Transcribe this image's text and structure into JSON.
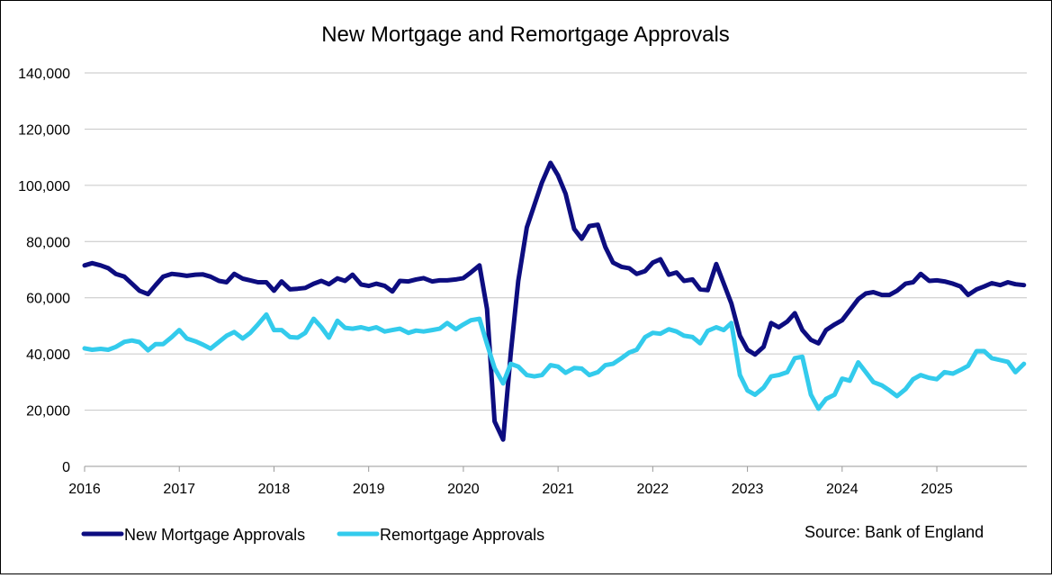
{
  "chart_data": {
    "type": "line",
    "title": "New Mortgage and Remortgage Approvals",
    "xlabel": "",
    "ylabel": "",
    "ylim": [
      0,
      140000
    ],
    "y_ticks": [
      0,
      20000,
      40000,
      60000,
      80000,
      100000,
      120000,
      140000
    ],
    "y_tick_labels": [
      "0",
      "20,000",
      "40,000",
      "60,000",
      "80,000",
      "100,000",
      "120,000",
      "140,000"
    ],
    "x_start_year": 2016,
    "x_end_year": 2025.95,
    "x_tick_labels": [
      "2016",
      "2017",
      "2018",
      "2019",
      "2020",
      "2021",
      "2022",
      "2023",
      "2024",
      "2025"
    ],
    "grid": true,
    "legend": "bottom-left",
    "source": "Source: Bank of England",
    "series": [
      {
        "name": "New Mortgage Approvals",
        "color": "#0d0d80",
        "values": [
          [
            2016.0,
            71500
          ],
          [
            2016.08,
            72300
          ],
          [
            2016.17,
            71500
          ],
          [
            2016.25,
            70500
          ],
          [
            2016.33,
            68500
          ],
          [
            2016.42,
            67500
          ],
          [
            2016.5,
            65000
          ],
          [
            2016.58,
            62500
          ],
          [
            2016.67,
            61300
          ],
          [
            2016.75,
            64500
          ],
          [
            2016.83,
            67500
          ],
          [
            2016.92,
            68500
          ],
          [
            2017.0,
            68200
          ],
          [
            2017.08,
            67800
          ],
          [
            2017.17,
            68200
          ],
          [
            2017.25,
            68300
          ],
          [
            2017.33,
            67500
          ],
          [
            2017.42,
            66000
          ],
          [
            2017.5,
            65500
          ],
          [
            2017.58,
            68500
          ],
          [
            2017.67,
            66800
          ],
          [
            2017.75,
            66200
          ],
          [
            2017.83,
            65500
          ],
          [
            2017.92,
            65500
          ],
          [
            2018.0,
            62500
          ],
          [
            2018.08,
            65800
          ],
          [
            2018.17,
            63000
          ],
          [
            2018.25,
            63200
          ],
          [
            2018.33,
            63500
          ],
          [
            2018.42,
            65000
          ],
          [
            2018.5,
            66000
          ],
          [
            2018.58,
            64800
          ],
          [
            2018.67,
            66900
          ],
          [
            2018.75,
            66000
          ],
          [
            2018.83,
            68200
          ],
          [
            2018.92,
            64700
          ],
          [
            2019.0,
            64200
          ],
          [
            2019.08,
            65000
          ],
          [
            2019.17,
            64200
          ],
          [
            2019.25,
            62200
          ],
          [
            2019.33,
            66000
          ],
          [
            2019.42,
            65800
          ],
          [
            2019.5,
            66500
          ],
          [
            2019.58,
            67000
          ],
          [
            2019.67,
            65800
          ],
          [
            2019.75,
            66200
          ],
          [
            2019.83,
            66200
          ],
          [
            2019.92,
            66500
          ],
          [
            2020.0,
            67000
          ],
          [
            2020.08,
            69000
          ],
          [
            2020.17,
            71500
          ],
          [
            2020.25,
            56000
          ],
          [
            2020.33,
            16000
          ],
          [
            2020.42,
            9500
          ],
          [
            2020.5,
            40000
          ],
          [
            2020.58,
            66000
          ],
          [
            2020.67,
            85000
          ],
          [
            2020.75,
            93000
          ],
          [
            2020.83,
            101000
          ],
          [
            2020.92,
            108000
          ],
          [
            2021.0,
            103500
          ],
          [
            2021.08,
            97000
          ],
          [
            2021.17,
            84500
          ],
          [
            2021.25,
            81000
          ],
          [
            2021.33,
            85500
          ],
          [
            2021.42,
            86000
          ],
          [
            2021.5,
            78000
          ],
          [
            2021.58,
            72500
          ],
          [
            2021.67,
            71000
          ],
          [
            2021.75,
            70500
          ],
          [
            2021.83,
            68500
          ],
          [
            2021.92,
            69500
          ],
          [
            2022.0,
            72500
          ],
          [
            2022.08,
            73700
          ],
          [
            2022.17,
            68200
          ],
          [
            2022.25,
            69000
          ],
          [
            2022.33,
            66000
          ],
          [
            2022.42,
            66500
          ],
          [
            2022.5,
            63000
          ],
          [
            2022.58,
            62700
          ],
          [
            2022.67,
            72000
          ],
          [
            2022.75,
            65000
          ],
          [
            2022.83,
            58000
          ],
          [
            2022.92,
            46500
          ],
          [
            2023.0,
            41500
          ],
          [
            2023.08,
            39800
          ],
          [
            2023.17,
            42500
          ],
          [
            2023.25,
            51000
          ],
          [
            2023.33,
            49500
          ],
          [
            2023.42,
            51500
          ],
          [
            2023.5,
            54500
          ],
          [
            2023.58,
            48500
          ],
          [
            2023.67,
            45000
          ],
          [
            2023.75,
            43800
          ],
          [
            2023.83,
            48500
          ],
          [
            2023.92,
            50500
          ],
          [
            2024.0,
            52000
          ],
          [
            2024.08,
            55500
          ],
          [
            2024.17,
            59500
          ],
          [
            2024.25,
            61500
          ],
          [
            2024.33,
            62000
          ],
          [
            2024.42,
            61000
          ],
          [
            2024.5,
            61000
          ],
          [
            2024.58,
            62500
          ],
          [
            2024.67,
            65000
          ],
          [
            2024.75,
            65500
          ],
          [
            2024.83,
            68500
          ],
          [
            2024.92,
            66000
          ],
          [
            2025.0,
            66200
          ],
          [
            2025.08,
            65800
          ],
          [
            2025.17,
            65000
          ],
          [
            2025.25,
            64000
          ],
          [
            2025.33,
            61000
          ],
          [
            2025.42,
            63000
          ],
          [
            2025.5,
            64000
          ],
          [
            2025.58,
            65200
          ],
          [
            2025.67,
            64500
          ],
          [
            2025.75,
            65500
          ],
          [
            2025.83,
            64800
          ],
          [
            2025.92,
            64500
          ]
        ]
      },
      {
        "name": "Remortgage Approvals",
        "color": "#33cbec",
        "values": [
          [
            2016.0,
            42000
          ],
          [
            2016.08,
            41500
          ],
          [
            2016.17,
            41800
          ],
          [
            2016.25,
            41500
          ],
          [
            2016.33,
            42500
          ],
          [
            2016.42,
            44300
          ],
          [
            2016.5,
            44800
          ],
          [
            2016.58,
            44200
          ],
          [
            2016.67,
            41300
          ],
          [
            2016.75,
            43500
          ],
          [
            2016.83,
            43500
          ],
          [
            2016.92,
            46000
          ],
          [
            2017.0,
            48500
          ],
          [
            2017.08,
            45500
          ],
          [
            2017.17,
            44500
          ],
          [
            2017.25,
            43300
          ],
          [
            2017.33,
            41900
          ],
          [
            2017.42,
            44300
          ],
          [
            2017.5,
            46500
          ],
          [
            2017.58,
            47800
          ],
          [
            2017.67,
            45500
          ],
          [
            2017.75,
            47500
          ],
          [
            2017.83,
            50500
          ],
          [
            2017.92,
            54000
          ],
          [
            2018.0,
            48500
          ],
          [
            2018.08,
            48500
          ],
          [
            2018.17,
            46000
          ],
          [
            2018.25,
            45800
          ],
          [
            2018.33,
            47500
          ],
          [
            2018.42,
            52500
          ],
          [
            2018.5,
            49500
          ],
          [
            2018.58,
            45800
          ],
          [
            2018.67,
            51800
          ],
          [
            2018.75,
            49300
          ],
          [
            2018.83,
            49000
          ],
          [
            2018.92,
            49500
          ],
          [
            2019.0,
            48800
          ],
          [
            2019.08,
            49500
          ],
          [
            2019.17,
            48000
          ],
          [
            2019.25,
            48500
          ],
          [
            2019.33,
            49000
          ],
          [
            2019.42,
            47500
          ],
          [
            2019.5,
            48300
          ],
          [
            2019.58,
            48000
          ],
          [
            2019.67,
            48500
          ],
          [
            2019.75,
            49000
          ],
          [
            2019.83,
            51000
          ],
          [
            2019.92,
            48800
          ],
          [
            2020.0,
            50500
          ],
          [
            2020.08,
            52000
          ],
          [
            2020.17,
            52500
          ],
          [
            2020.25,
            43500
          ],
          [
            2020.33,
            35000
          ],
          [
            2020.42,
            29500
          ],
          [
            2020.5,
            36500
          ],
          [
            2020.58,
            35500
          ],
          [
            2020.67,
            32500
          ],
          [
            2020.75,
            32000
          ],
          [
            2020.83,
            32500
          ],
          [
            2020.92,
            36000
          ],
          [
            2021.0,
            35500
          ],
          [
            2021.08,
            33300
          ],
          [
            2021.17,
            35000
          ],
          [
            2021.25,
            34800
          ],
          [
            2021.33,
            32500
          ],
          [
            2021.42,
            33500
          ],
          [
            2021.5,
            36000
          ],
          [
            2021.58,
            36500
          ],
          [
            2021.67,
            38500
          ],
          [
            2021.75,
            40500
          ],
          [
            2021.83,
            41500
          ],
          [
            2021.92,
            46000
          ],
          [
            2022.0,
            47500
          ],
          [
            2022.08,
            47200
          ],
          [
            2022.17,
            48800
          ],
          [
            2022.25,
            48000
          ],
          [
            2022.33,
            46500
          ],
          [
            2022.42,
            46000
          ],
          [
            2022.5,
            43800
          ],
          [
            2022.58,
            48200
          ],
          [
            2022.67,
            49500
          ],
          [
            2022.75,
            48500
          ],
          [
            2022.83,
            51000
          ],
          [
            2022.92,
            32500
          ],
          [
            2023.0,
            27000
          ],
          [
            2023.08,
            25500
          ],
          [
            2023.17,
            28000
          ],
          [
            2023.25,
            32000
          ],
          [
            2023.33,
            32500
          ],
          [
            2023.42,
            33500
          ],
          [
            2023.5,
            38500
          ],
          [
            2023.58,
            39000
          ],
          [
            2023.67,
            25500
          ],
          [
            2023.75,
            20500
          ],
          [
            2023.83,
            24000
          ],
          [
            2023.92,
            25500
          ],
          [
            2024.0,
            31200
          ],
          [
            2024.08,
            30500
          ],
          [
            2024.17,
            37000
          ],
          [
            2024.25,
            33500
          ],
          [
            2024.33,
            30000
          ],
          [
            2024.42,
            28800
          ],
          [
            2024.5,
            27000
          ],
          [
            2024.58,
            25000
          ],
          [
            2024.67,
            27500
          ],
          [
            2024.75,
            31000
          ],
          [
            2024.83,
            32500
          ],
          [
            2024.92,
            31500
          ],
          [
            2025.0,
            31000
          ],
          [
            2025.08,
            33500
          ],
          [
            2025.17,
            33000
          ],
          [
            2025.25,
            34300
          ],
          [
            2025.33,
            35800
          ],
          [
            2025.42,
            41000
          ],
          [
            2025.5,
            41000
          ],
          [
            2025.58,
            38500
          ],
          [
            2025.67,
            37800
          ],
          [
            2025.75,
            37200
          ],
          [
            2025.83,
            33500
          ],
          [
            2025.92,
            36500
          ]
        ]
      }
    ]
  }
}
